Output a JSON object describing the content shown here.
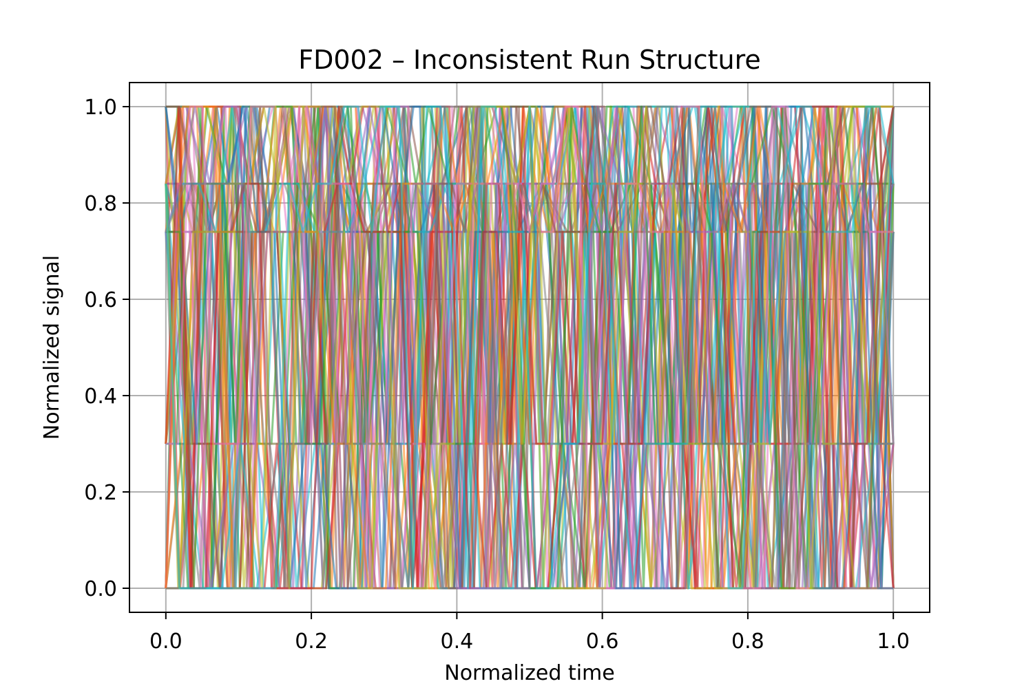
{
  "chart_data": {
    "type": "line",
    "title": "FD002 – Inconsistent Run Structure",
    "xlabel": "Normalized time",
    "ylabel": "Normalized signal",
    "xlim": [
      -0.05,
      1.05
    ],
    "ylim": [
      -0.05,
      1.05
    ],
    "x_ticks": [
      {
        "value": 0.0,
        "label": "0.0"
      },
      {
        "value": 0.2,
        "label": "0.2"
      },
      {
        "value": 0.4,
        "label": "0.4"
      },
      {
        "value": 0.6,
        "label": "0.6"
      },
      {
        "value": 0.8,
        "label": "0.8"
      },
      {
        "value": 1.0,
        "label": "1.0"
      }
    ],
    "y_ticks": [
      {
        "value": 0.0,
        "label": "0.0"
      },
      {
        "value": 0.2,
        "label": "0.2"
      },
      {
        "value": 0.4,
        "label": "0.4"
      },
      {
        "value": 0.6,
        "label": "0.6"
      },
      {
        "value": 0.8,
        "label": "0.8"
      },
      {
        "value": 1.0,
        "label": "1.0"
      }
    ],
    "grid": true,
    "legend": "none",
    "signal_levels": [
      0.0,
      0.3,
      0.74,
      0.84,
      1.0
    ],
    "x_range": [
      0.0,
      1.0
    ],
    "series_count": 60,
    "line_opacity": 0.55,
    "palette": [
      "#1f77b4",
      "#ff7f0e",
      "#2ca02c",
      "#d62728",
      "#9467bd",
      "#8c564b",
      "#e377c2",
      "#7f7f7f",
      "#bcbd22",
      "#17becf"
    ]
  }
}
